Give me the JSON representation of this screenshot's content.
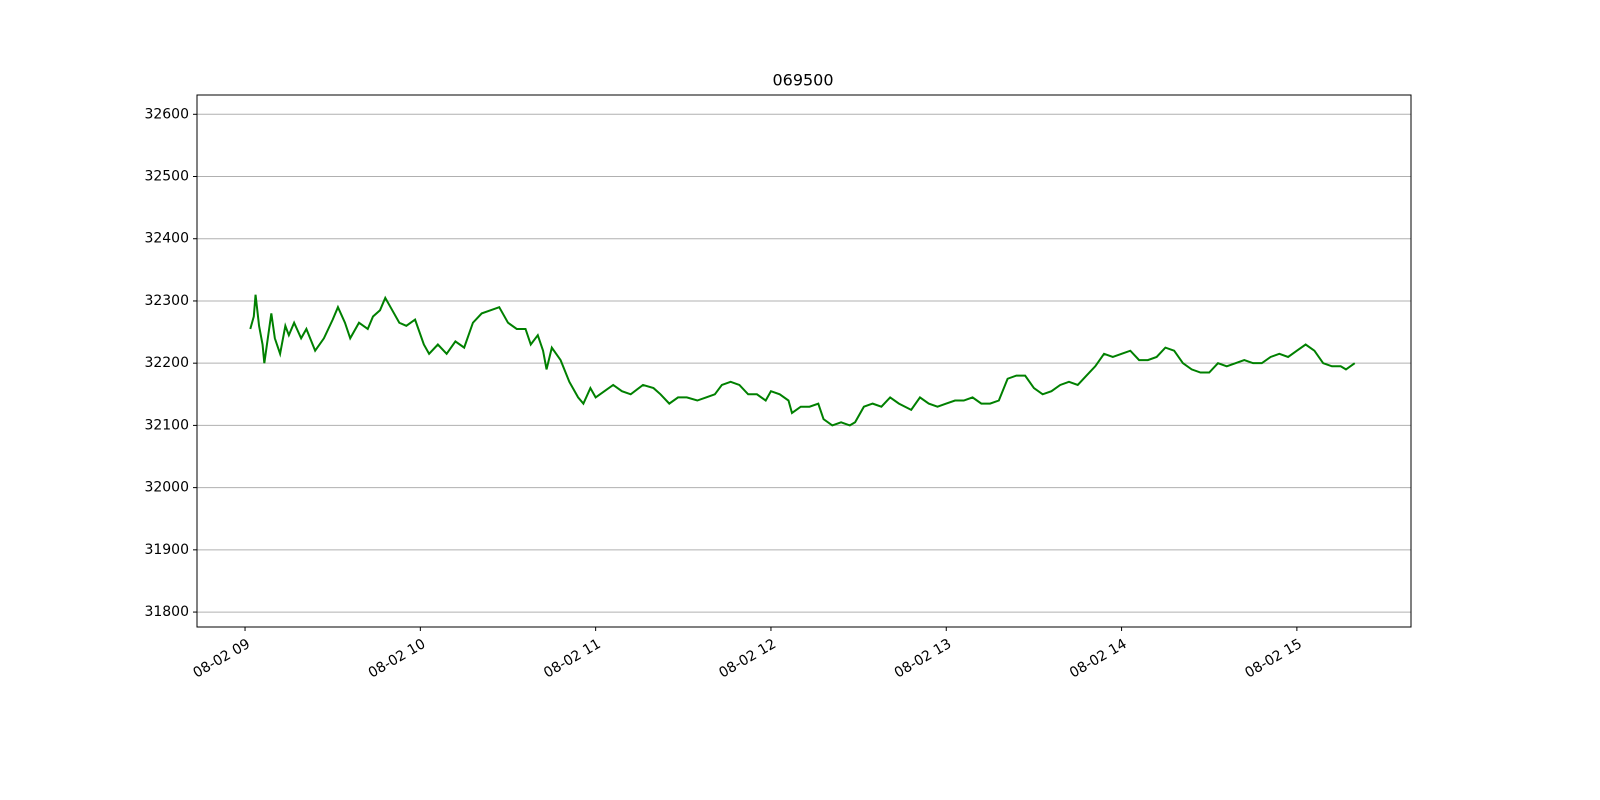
{
  "chart_data": {
    "type": "line",
    "title": "069500",
    "x": [
      9.03,
      9.05,
      9.06,
      9.08,
      9.1,
      9.11,
      9.13,
      9.15,
      9.17,
      9.2,
      9.23,
      9.25,
      9.28,
      9.32,
      9.35,
      9.4,
      9.45,
      9.5,
      9.53,
      9.57,
      9.6,
      9.65,
      9.7,
      9.73,
      9.77,
      9.8,
      9.83,
      9.88,
      9.92,
      9.97,
      10.02,
      10.05,
      10.1,
      10.15,
      10.2,
      10.25,
      10.3,
      10.35,
      10.4,
      10.45,
      10.5,
      10.55,
      10.6,
      10.63,
      10.67,
      10.7,
      10.72,
      10.75,
      10.8,
      10.85,
      10.9,
      10.93,
      10.97,
      11.0,
      11.05,
      11.1,
      11.15,
      11.2,
      11.27,
      11.33,
      11.37,
      11.42,
      11.47,
      11.52,
      11.58,
      11.63,
      11.68,
      11.72,
      11.77,
      11.82,
      11.87,
      11.92,
      11.97,
      12.0,
      12.05,
      12.1,
      12.12,
      12.17,
      12.22,
      12.27,
      12.3,
      12.35,
      12.4,
      12.45,
      12.48,
      12.53,
      12.58,
      12.63,
      12.68,
      12.73,
      12.8,
      12.85,
      12.9,
      12.95,
      13.0,
      13.05,
      13.1,
      13.15,
      13.2,
      13.25,
      13.3,
      13.35,
      13.4,
      13.45,
      13.5,
      13.55,
      13.6,
      13.65,
      13.7,
      13.75,
      13.8,
      13.85,
      13.9,
      13.95,
      14.0,
      14.05,
      14.1,
      14.15,
      14.2,
      14.25,
      14.3,
      14.35,
      14.4,
      14.45,
      14.5,
      14.55,
      14.6,
      14.65,
      14.7,
      14.75,
      14.8,
      14.85,
      14.9,
      14.95,
      15.0,
      15.05,
      15.1,
      15.15,
      15.2,
      15.25,
      15.28,
      15.33
    ],
    "series": [
      {
        "name": "069500",
        "color": "#008000",
        "values": [
          32255,
          32275,
          32310,
          32260,
          32230,
          32200,
          32240,
          32280,
          32240,
          32215,
          32260,
          32245,
          32265,
          32240,
          32255,
          32220,
          32240,
          32270,
          32290,
          32265,
          32240,
          32265,
          32255,
          32275,
          32285,
          32305,
          32290,
          32265,
          32260,
          32270,
          32230,
          32215,
          32230,
          32215,
          32235,
          32225,
          32265,
          32280,
          32285,
          32290,
          32265,
          32255,
          32255,
          32230,
          32245,
          32220,
          32190,
          32225,
          32205,
          32170,
          32145,
          32135,
          32160,
          32145,
          32155,
          32165,
          32155,
          32150,
          32165,
          32160,
          32150,
          32135,
          32145,
          32145,
          32140,
          32145,
          32150,
          32165,
          32170,
          32165,
          32150,
          32150,
          32140,
          32155,
          32150,
          32140,
          32120,
          32130,
          32130,
          32135,
          32110,
          32100,
          32105,
          32100,
          32105,
          32130,
          32135,
          32130,
          32145,
          32135,
          32125,
          32145,
          32135,
          32130,
          32135,
          32140,
          32140,
          32145,
          32135,
          32135,
          32140,
          32175,
          32180,
          32180,
          32160,
          32150,
          32155,
          32165,
          32170,
          32165,
          32180,
          32195,
          32215,
          32210,
          32215,
          32220,
          32205,
          32205,
          32210,
          32225,
          32220,
          32200,
          32190,
          32185,
          32185,
          32200,
          32195,
          32200,
          32205,
          32200,
          32200,
          32210,
          32215,
          32210,
          32220,
          32230,
          32220,
          32200,
          32195,
          32195,
          32190,
          32200
        ]
      }
    ],
    "xlim": [
      8.726,
      15.651
    ],
    "xticks": [
      {
        "value": 9,
        "label": "08-02 09"
      },
      {
        "value": 10,
        "label": "08-02 10"
      },
      {
        "value": 11,
        "label": "08-02 11"
      },
      {
        "value": 12,
        "label": "08-02 12"
      },
      {
        "value": 13,
        "label": "08-02 13"
      },
      {
        "value": 14,
        "label": "08-02 14"
      },
      {
        "value": 15,
        "label": "08-02 15"
      }
    ],
    "ylim": [
      31776,
      32631
    ],
    "yticks": [
      31800,
      31900,
      32000,
      32100,
      32200,
      32300,
      32400,
      32500,
      32600
    ],
    "grid": true
  }
}
